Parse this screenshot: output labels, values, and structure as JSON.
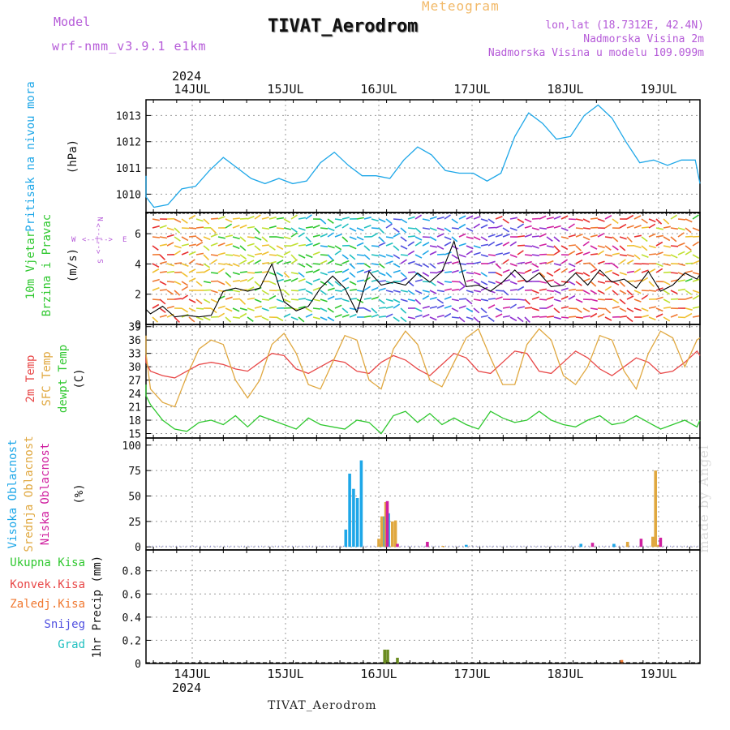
{
  "header": {
    "model_label": "Model",
    "model": "wrf-nmm_v3.9.1  e1km",
    "meteogram": "Meteogram",
    "title": "TIVAT_Aerodrom",
    "lonlat": "lon,lat (18.7312E, 42.4N)",
    "altitude": "Nadmorska Visina 2m",
    "altitude_model": "Nadmorska Visina u modelu 109.099m"
  },
  "footer": {
    "station": "TIVAT_Aerodrom",
    "made_by": "made by Angel"
  },
  "colors": {
    "pressure": "#1ea7e8",
    "temp2m": "#e84848",
    "sfc": "#e0a840",
    "dewpt": "#30c830",
    "cloud_high": "#1ea7e8",
    "cloud_mid": "#e0a840",
    "cloud_low": "#d020a0",
    "precip_total": "#30c830",
    "precip_conv": "#e84848",
    "precip_frozen": "#f07830",
    "snow": "#5050e0",
    "hail": "#20c0c0",
    "wind_label": "#30c830",
    "wind_compass": "#b55ad8"
  },
  "chart_data": [
    {
      "type": "line",
      "panel": "pressure",
      "ylabel": "Pritisak na nivou mora",
      "unit": "(hPa)",
      "ylim": [
        1009.3,
        1013.6
      ],
      "yticks": [
        1010,
        1011,
        1012,
        1013
      ],
      "grid": true,
      "x_ticks": [
        "14JUL",
        "15JUL",
        "16JUL",
        "17JUL",
        "18JUL",
        "19JUL"
      ],
      "year": "2024",
      "x_hours": [
        0,
        3,
        6,
        9,
        12,
        15,
        18,
        21,
        24,
        27,
        30,
        33,
        36,
        39,
        42,
        45,
        48,
        51,
        54,
        57,
        60,
        63,
        66,
        69,
        72,
        75,
        78,
        81,
        84,
        87,
        90,
        93,
        96,
        99,
        102,
        105,
        108,
        111,
        114,
        117,
        120,
        123,
        126,
        129,
        132,
        135,
        138,
        141,
        144
      ],
      "series": [
        {
          "name": "",
          "values": [
            1010.7,
            1009.9,
            1009.5,
            1009.6,
            1010.2,
            1010.3,
            1010.9,
            1011.4,
            1011.0,
            1010.6,
            1010.4,
            1010.6,
            1010.4,
            1010.5,
            1011.2,
            1011.6,
            1011.1,
            1010.7,
            1010.7,
            1010.6,
            1011.3,
            1011.8,
            1011.5,
            1010.9,
            1010.8,
            1010.8,
            1010.5,
            1010.8,
            1012.2,
            1013.1,
            1012.7,
            1012.1,
            1012.2,
            1013.0,
            1013.4,
            1012.9,
            1012.0,
            1011.2,
            1011.3,
            1011.1,
            1011.3,
            1011.3,
            1010.4
          ]
        }
      ]
    },
    {
      "type": "line",
      "panel": "wind",
      "ylabel": [
        "10m Vjetar",
        "Brzina i Pravac"
      ],
      "unit": "(m/s)",
      "compass": {
        "w": "W",
        "e": "E",
        "n": "N",
        "s": "S"
      },
      "ylim": [
        0,
        7.4
      ],
      "yticks": [
        0,
        2,
        4,
        6
      ],
      "grid": true,
      "x_hours": [
        0,
        3,
        6,
        9,
        12,
        15,
        18,
        21,
        24,
        27,
        30,
        33,
        36,
        39,
        42,
        45,
        48,
        51,
        54,
        57,
        60,
        63,
        66,
        69,
        72,
        75,
        78,
        81,
        84,
        87,
        90,
        93,
        96,
        99,
        102,
        105,
        108,
        111,
        114,
        117,
        120,
        123,
        126,
        129,
        132,
        135,
        138,
        141,
        144
      ],
      "series": [
        {
          "name": "",
          "values": [
            3.2,
            1.0,
            0.7,
            1.2,
            0.5,
            0.6,
            0.5,
            0.6,
            2.2,
            2.4,
            2.2,
            2.4,
            4.0,
            1.5,
            0.9,
            1.2,
            2.4,
            3.2,
            2.4,
            0.8,
            3.5,
            2.6,
            2.8,
            2.6,
            3.4,
            2.8,
            3.5,
            5.5,
            2.5,
            2.6,
            2.2,
            2.8,
            3.6,
            2.8,
            3.4,
            2.5,
            2.6,
            3.4,
            2.6,
            3.6,
            2.8,
            3.0,
            2.4,
            3.5,
            2.2,
            2.6,
            3.4,
            3.0,
            3.3
          ]
        }
      ]
    },
    {
      "type": "line",
      "panel": "temperature",
      "ylabel": [
        "2m Temp",
        "SFC Temp",
        "dewpt Temp"
      ],
      "unit": "(C)",
      "ylim": [
        14,
        39.5
      ],
      "yticks": [
        15,
        18,
        21,
        24,
        27,
        30,
        33,
        36,
        39
      ],
      "grid": true,
      "x_hours": [
        0,
        3,
        6,
        9,
        12,
        15,
        18,
        21,
        24,
        27,
        30,
        33,
        36,
        39,
        42,
        45,
        48,
        51,
        54,
        57,
        60,
        63,
        66,
        69,
        72,
        75,
        78,
        81,
        84,
        87,
        90,
        93,
        96,
        99,
        102,
        105,
        108,
        111,
        114,
        117,
        120,
        123,
        126,
        129,
        132,
        135,
        138,
        141,
        144
      ],
      "series": [
        {
          "name": "2m Temp",
          "values": [
            32.5,
            31.0,
            29.0,
            28.0,
            27.5,
            29.0,
            30.5,
            31.0,
            30.5,
            29.5,
            29.0,
            31.0,
            33.0,
            32.5,
            29.5,
            28.5,
            30.0,
            31.5,
            31.0,
            29.0,
            28.5,
            31.0,
            32.5,
            31.5,
            29.5,
            28.0,
            30.5,
            33.0,
            32.0,
            29.0,
            28.5,
            31.0,
            33.5,
            33.0,
            29.0,
            28.5,
            31.0,
            33.5,
            32.0,
            29.5,
            28.0,
            30.0,
            32.0,
            31.0,
            28.5,
            29.0,
            31.0,
            33.5,
            32.5
          ]
        },
        {
          "name": "SFC Temp",
          "values": [
            37.0,
            33.0,
            25.0,
            22.0,
            21.0,
            28.0,
            34.0,
            36.0,
            35.0,
            27.0,
            23.0,
            27.0,
            35.0,
            37.5,
            33.0,
            26.0,
            25.0,
            31.0,
            37.0,
            36.0,
            27.0,
            25.0,
            34.0,
            38.0,
            35.0,
            27.0,
            25.5,
            31.0,
            36.5,
            38.5,
            32.0,
            26.0,
            26.0,
            35.0,
            38.5,
            36.0,
            28.0,
            26.0,
            30.0,
            37.0,
            36.0,
            29.0,
            25.0,
            33.0,
            38.0,
            36.5,
            30.0,
            36.0,
            36.5
          ]
        },
        {
          "name": "dewpt Temp",
          "values": [
            26.0,
            23.5,
            21.5,
            18.0,
            16.0,
            15.5,
            17.5,
            18.0,
            17.0,
            19.0,
            16.5,
            19.0,
            18.0,
            17.0,
            16.0,
            18.5,
            17.0,
            16.5,
            16.0,
            18.0,
            17.5,
            15.0,
            19.0,
            20.0,
            17.5,
            19.5,
            17.0,
            18.5,
            17.0,
            16.0,
            20.0,
            18.5,
            17.5,
            18.0,
            20.0,
            18.0,
            17.0,
            16.5,
            18.0,
            19.0,
            17.0,
            17.5,
            19.0,
            17.5,
            16.0,
            17.0,
            18.0,
            16.5,
            18.0
          ]
        }
      ]
    },
    {
      "type": "bar",
      "panel": "clouds",
      "ylabel": [
        "Visoka Oblacnost",
        "Srednja Oblacnost",
        "Niska Oblacnost"
      ],
      "unit": "(%)",
      "ylim": [
        -3,
        107
      ],
      "yticks": [
        0,
        25,
        50,
        75,
        100
      ],
      "grid": true,
      "series": [
        {
          "name": "Visoka Oblacnost",
          "points": [
            [
              49.5,
              17
            ],
            [
              50.5,
              72
            ],
            [
              51.5,
              57
            ],
            [
              52.5,
              48
            ],
            [
              53.5,
              85
            ],
            [
              58.5,
              3
            ],
            [
              59.5,
              30
            ],
            [
              60.5,
              33
            ],
            [
              80.5,
              2
            ],
            [
              110.0,
              3
            ],
            [
              118.5,
              3
            ]
          ]
        },
        {
          "name": "Srednja Oblacnost",
          "points": [
            [
              58.0,
              8
            ],
            [
              58.8,
              30
            ],
            [
              59.8,
              44
            ],
            [
              61.5,
              25
            ],
            [
              62.3,
              26
            ],
            [
              74.5,
              1
            ],
            [
              122.0,
              5
            ],
            [
              128.5,
              10
            ],
            [
              129.2,
              75
            ],
            [
              130.0,
              2
            ]
          ]
        },
        {
          "name": "Niska Oblacnost",
          "points": [
            [
              60.2,
              45
            ],
            [
              62.8,
              3
            ],
            [
              70.5,
              5
            ],
            [
              113.0,
              4
            ],
            [
              125.5,
              8
            ],
            [
              130.5,
              9
            ]
          ]
        }
      ]
    },
    {
      "type": "bar",
      "panel": "precip",
      "ylabel": "1hr Precip (mm)",
      "legend_labels": [
        "Ukupna Kisa",
        "Konvek.Kisa",
        "Zaledj.Kisa",
        "Snijeg",
        "Grad"
      ],
      "ylim": [
        0,
        0.98
      ],
      "yticks": [
        0,
        0.2,
        0.4,
        0.6,
        0.8
      ],
      "grid": true,
      "series": [
        {
          "name": "Ukupna Kisa",
          "points": [
            [
              59.5,
              0.12
            ],
            [
              60.3,
              0.12
            ],
            [
              62.8,
              0.05
            ]
          ]
        },
        {
          "name": "Zaledj.Kisa",
          "points": [
            [
              120.5,
              0.03
            ]
          ]
        }
      ]
    }
  ]
}
